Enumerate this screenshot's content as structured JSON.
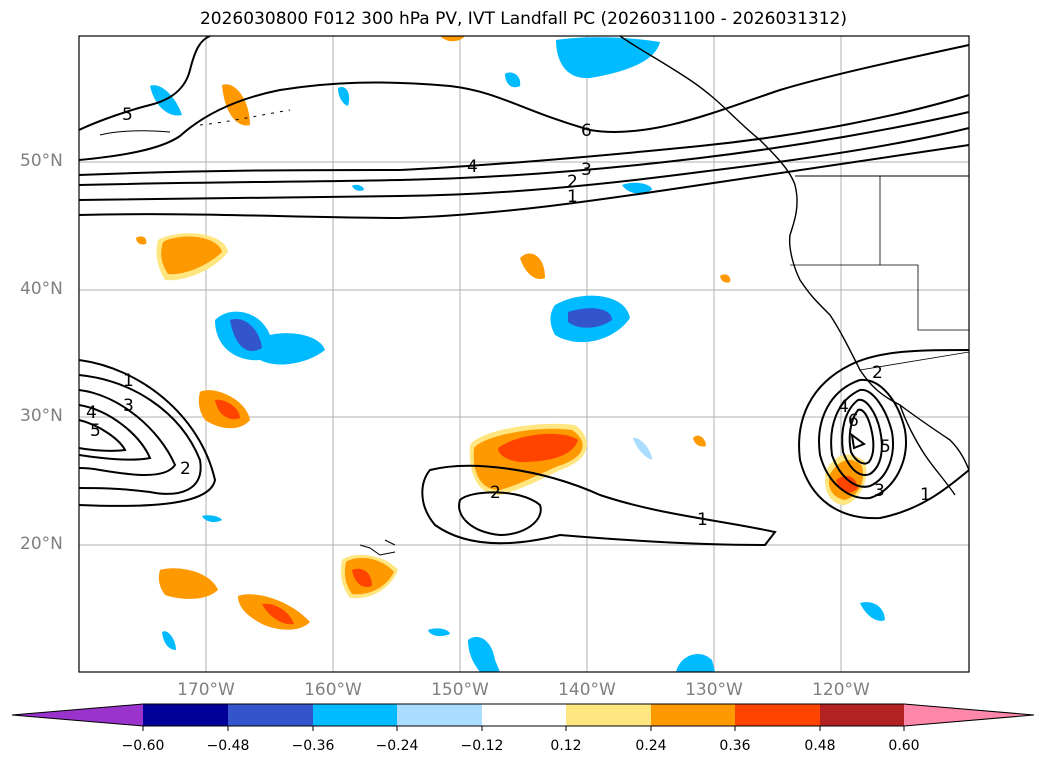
{
  "title": "2026030800 F012 300 hPa PV, IVT Landfall PC (2026031100 - 2026031312)",
  "lat_labels": [
    "50°N",
    "40°N",
    "30°N",
    "20°N"
  ],
  "lon_labels": [
    "170°W",
    "160°W",
    "150°W",
    "140°W",
    "130°W",
    "120°W"
  ],
  "colorbar": {
    "ticks": [
      "−0.60",
      "−0.48",
      "−0.36",
      "−0.24",
      "−0.12",
      "0.12",
      "0.24",
      "0.36",
      "0.48",
      "0.60"
    ],
    "colors": [
      "#9933cc",
      "#000099",
      "#3355cc",
      "#00bbff",
      "#aaddff",
      "#ffffff",
      "#ffe680",
      "#ff9900",
      "#ff4400",
      "#b22222",
      "#ff88aa"
    ]
  },
  "contour_labels": [
    "6",
    "5",
    "4",
    "3",
    "2",
    "1",
    "1",
    "3",
    "4",
    "5",
    "2",
    "2",
    "1",
    "2",
    "4",
    "5",
    "3",
    "1",
    "6"
  ],
  "colors": {
    "grid": "#b0b0b0",
    "contour": "#000000",
    "coast": "#000000"
  }
}
